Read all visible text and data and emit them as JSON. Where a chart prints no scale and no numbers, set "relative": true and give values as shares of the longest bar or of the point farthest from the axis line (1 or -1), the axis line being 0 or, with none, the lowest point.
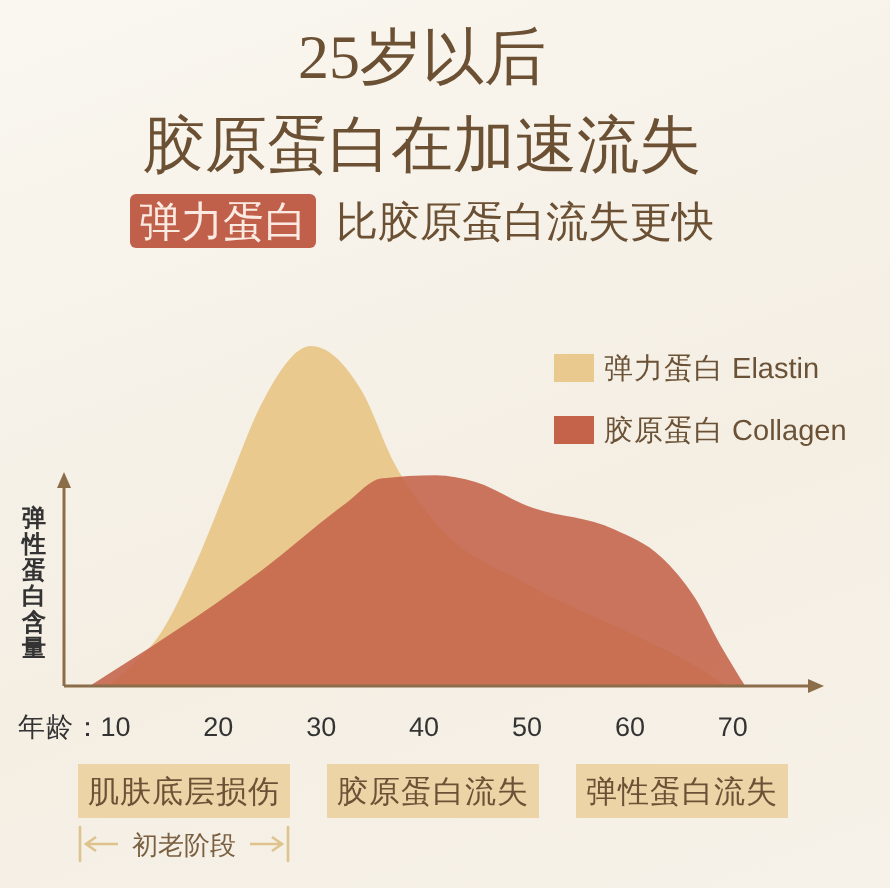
{
  "chart_data": {
    "type": "area",
    "title": "25岁以后",
    "subtitle": "胶原蛋白在加速流失",
    "xlabel": "年龄：",
    "ylabel": "弹性蛋白含量",
    "relative": true,
    "xlim": [
      5,
      77.5
    ],
    "xticks": [
      10,
      20,
      30,
      40,
      50,
      60,
      70
    ],
    "legend": "top right",
    "series": [
      {
        "name": "弹力蛋白 Elastin",
        "color": "#e9c98e",
        "x": [
          9.2,
          11.2,
          14.5,
          17.8,
          20.9,
          24.2,
          29,
          33.9,
          37.2,
          41.1,
          50,
          59.7,
          66.3,
          69.4
        ],
        "values": [
          0,
          0.05,
          0.16,
          0.36,
          0.59,
          0.83,
          1,
          0.87,
          0.65,
          0.48,
          0.3,
          0.16,
          0.06,
          0
        ]
      },
      {
        "name": "胶原蛋白 Collagen",
        "color": "#c5634a",
        "x": [
          7.5,
          24.2,
          32.5,
          35.8,
          41.1,
          45,
          50,
          58.5,
          63,
          66.3,
          68.8,
          71.2
        ],
        "values": [
          0,
          0.34,
          0.54,
          0.61,
          0.62,
          0.6,
          0.53,
          0.46,
          0.38,
          0.26,
          0.12,
          0
        ]
      }
    ],
    "annotations": [
      "弹力蛋白 比胶原蛋白流失更快",
      "肌肤底层损伤",
      "胶原蛋白流失",
      "弹性蛋白流失",
      "初老阶段"
    ]
  }
}
